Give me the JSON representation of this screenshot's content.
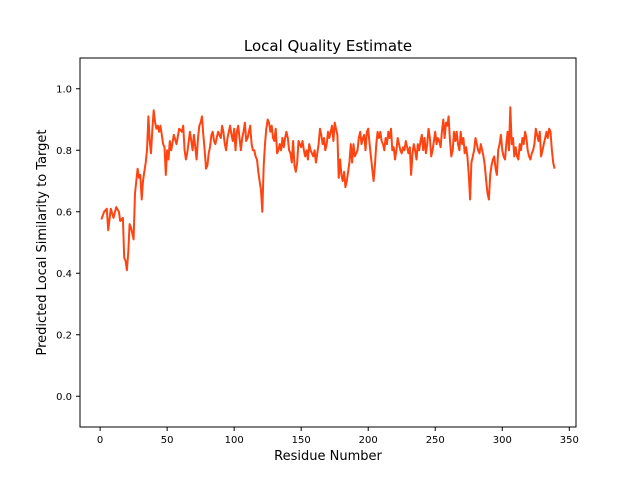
{
  "chart_data": {
    "type": "line",
    "title": "Local Quality Estimate",
    "xlabel": "Residue Number",
    "ylabel": "Predicted Local Similarity to Target",
    "xlim": [
      -15,
      355
    ],
    "ylim": [
      -0.1,
      1.1
    ],
    "xticks": [
      0,
      50,
      100,
      150,
      200,
      250,
      300,
      350
    ],
    "yticks": [
      0.0,
      0.2,
      0.4,
      0.6,
      0.8,
      1.0
    ],
    "ytick_labels": [
      "0.0",
      "0.2",
      "0.4",
      "0.6",
      "0.8",
      "1.0"
    ],
    "grid": false,
    "series": [
      {
        "color": "#ff4411",
        "points": [
          [
            1,
            0.575
          ],
          [
            3,
            0.6
          ],
          [
            5,
            0.61
          ],
          [
            6,
            0.54
          ],
          [
            8,
            0.61
          ],
          [
            10,
            0.58
          ],
          [
            12,
            0.615
          ],
          [
            14,
            0.6
          ],
          [
            15,
            0.57
          ],
          [
            17,
            0.58
          ],
          [
            18,
            0.45
          ],
          [
            19,
            0.44
          ],
          [
            20,
            0.41
          ],
          [
            21,
            0.47
          ],
          [
            22,
            0.56
          ],
          [
            23,
            0.55
          ],
          [
            24,
            0.53
          ],
          [
            25,
            0.51
          ],
          [
            26,
            0.66
          ],
          [
            28,
            0.74
          ],
          [
            29,
            0.71
          ],
          [
            30,
            0.72
          ],
          [
            31,
            0.64
          ],
          [
            32,
            0.7
          ],
          [
            33,
            0.73
          ],
          [
            34,
            0.76
          ],
          [
            35,
            0.8
          ],
          [
            36,
            0.91
          ],
          [
            37,
            0.83
          ],
          [
            38,
            0.79
          ],
          [
            39,
            0.87
          ],
          [
            40,
            0.93
          ],
          [
            41,
            0.89
          ],
          [
            42,
            0.87
          ],
          [
            43,
            0.88
          ],
          [
            44,
            0.86
          ],
          [
            45,
            0.88
          ],
          [
            46,
            0.85
          ],
          [
            47,
            0.82
          ],
          [
            48,
            0.81
          ],
          [
            49,
            0.72
          ],
          [
            50,
            0.8
          ],
          [
            51,
            0.77
          ],
          [
            52,
            0.83
          ],
          [
            53,
            0.8
          ],
          [
            55,
            0.85
          ],
          [
            57,
            0.82
          ],
          [
            59,
            0.87
          ],
          [
            61,
            0.86
          ],
          [
            62,
            0.88
          ],
          [
            63,
            0.8
          ],
          [
            64,
            0.77
          ],
          [
            65,
            0.79
          ],
          [
            67,
            0.86
          ],
          [
            68,
            0.83
          ],
          [
            69,
            0.8
          ],
          [
            70,
            0.85
          ],
          [
            71,
            0.81
          ],
          [
            72,
            0.77
          ],
          [
            73,
            0.84
          ],
          [
            74,
            0.88
          ],
          [
            75,
            0.89
          ],
          [
            76,
            0.91
          ],
          [
            77,
            0.85
          ],
          [
            78,
            0.8
          ],
          [
            79,
            0.74
          ],
          [
            80,
            0.75
          ],
          [
            81,
            0.79
          ],
          [
            82,
            0.81
          ],
          [
            83,
            0.85
          ],
          [
            84,
            0.86
          ],
          [
            85,
            0.83
          ],
          [
            86,
            0.82
          ],
          [
            87,
            0.84
          ],
          [
            88,
            0.86
          ],
          [
            89,
            0.85
          ],
          [
            90,
            0.84
          ],
          [
            91,
            0.88
          ],
          [
            92,
            0.86
          ],
          [
            93,
            0.82
          ],
          [
            94,
            0.8
          ],
          [
            95,
            0.84
          ],
          [
            96,
            0.86
          ],
          [
            97,
            0.88
          ],
          [
            98,
            0.85
          ],
          [
            99,
            0.83
          ],
          [
            100,
            0.87
          ],
          [
            101,
            0.8
          ],
          [
            102,
            0.86
          ],
          [
            103,
            0.88
          ],
          [
            104,
            0.84
          ],
          [
            105,
            0.8
          ],
          [
            106,
            0.84
          ],
          [
            107,
            0.86
          ],
          [
            108,
            0.89
          ],
          [
            109,
            0.83
          ],
          [
            110,
            0.84
          ],
          [
            111,
            0.86
          ],
          [
            112,
            0.88
          ],
          [
            113,
            0.82
          ],
          [
            114,
            0.8
          ],
          [
            115,
            0.8
          ],
          [
            116,
            0.78
          ],
          [
            117,
            0.77
          ],
          [
            118,
            0.73
          ],
          [
            119,
            0.7
          ],
          [
            120,
            0.67
          ],
          [
            121,
            0.6
          ],
          [
            122,
            0.75
          ],
          [
            123,
            0.82
          ],
          [
            124,
            0.87
          ],
          [
            125,
            0.9
          ],
          [
            126,
            0.89
          ],
          [
            127,
            0.86
          ],
          [
            128,
            0.88
          ],
          [
            129,
            0.84
          ],
          [
            130,
            0.83
          ],
          [
            131,
            0.87
          ],
          [
            132,
            0.79
          ],
          [
            133,
            0.8
          ],
          [
            134,
            0.82
          ],
          [
            135,
            0.8
          ],
          [
            136,
            0.84
          ],
          [
            137,
            0.81
          ],
          [
            138,
            0.84
          ],
          [
            139,
            0.86
          ],
          [
            140,
            0.84
          ],
          [
            141,
            0.8
          ],
          [
            142,
            0.79
          ],
          [
            143,
            0.76
          ],
          [
            144,
            0.83
          ],
          [
            145,
            0.75
          ],
          [
            146,
            0.73
          ],
          [
            147,
            0.76
          ],
          [
            148,
            0.83
          ],
          [
            149,
            0.82
          ],
          [
            150,
            0.81
          ],
          [
            151,
            0.83
          ],
          [
            152,
            0.8
          ],
          [
            153,
            0.78
          ],
          [
            154,
            0.8
          ],
          [
            155,
            0.77
          ],
          [
            156,
            0.82
          ],
          [
            157,
            0.8
          ],
          [
            158,
            0.79
          ],
          [
            159,
            0.78
          ],
          [
            160,
            0.8
          ],
          [
            161,
            0.76
          ],
          [
            162,
            0.79
          ],
          [
            163,
            0.82
          ],
          [
            164,
            0.87
          ],
          [
            165,
            0.85
          ],
          [
            166,
            0.82
          ],
          [
            167,
            0.84
          ],
          [
            168,
            0.8
          ],
          [
            169,
            0.82
          ],
          [
            170,
            0.86
          ],
          [
            171,
            0.84
          ],
          [
            172,
            0.86
          ],
          [
            173,
            0.88
          ],
          [
            174,
            0.83
          ],
          [
            175,
            0.89
          ],
          [
            176,
            0.87
          ],
          [
            177,
            0.85
          ],
          [
            178,
            0.71
          ],
          [
            179,
            0.77
          ],
          [
            180,
            0.72
          ],
          [
            181,
            0.7
          ],
          [
            182,
            0.73
          ],
          [
            183,
            0.68
          ],
          [
            184,
            0.7
          ],
          [
            185,
            0.73
          ],
          [
            186,
            0.76
          ],
          [
            187,
            0.82
          ],
          [
            188,
            0.76
          ],
          [
            189,
            0.82
          ],
          [
            190,
            0.78
          ],
          [
            191,
            0.79
          ],
          [
            192,
            0.8
          ],
          [
            193,
            0.84
          ],
          [
            194,
            0.86
          ],
          [
            195,
            0.82
          ],
          [
            196,
            0.84
          ],
          [
            197,
            0.85
          ],
          [
            198,
            0.8
          ],
          [
            199,
            0.86
          ],
          [
            200,
            0.87
          ],
          [
            201,
            0.82
          ],
          [
            202,
            0.78
          ],
          [
            203,
            0.74
          ],
          [
            204,
            0.7
          ],
          [
            205,
            0.75
          ],
          [
            206,
            0.82
          ],
          [
            207,
            0.86
          ],
          [
            208,
            0.84
          ],
          [
            209,
            0.86
          ],
          [
            210,
            0.83
          ],
          [
            211,
            0.82
          ],
          [
            212,
            0.8
          ],
          [
            213,
            0.84
          ],
          [
            214,
            0.82
          ],
          [
            215,
            0.86
          ],
          [
            216,
            0.84
          ],
          [
            217,
            0.87
          ],
          [
            218,
            0.8
          ],
          [
            219,
            0.81
          ],
          [
            220,
            0.77
          ],
          [
            221,
            0.8
          ],
          [
            222,
            0.84
          ],
          [
            223,
            0.82
          ],
          [
            224,
            0.8
          ],
          [
            225,
            0.79
          ],
          [
            226,
            0.81
          ],
          [
            227,
            0.8
          ],
          [
            228,
            0.83
          ],
          [
            229,
            0.81
          ],
          [
            230,
            0.79
          ],
          [
            231,
            0.81
          ],
          [
            232,
            0.72
          ],
          [
            233,
            0.79
          ],
          [
            234,
            0.82
          ],
          [
            235,
            0.8
          ],
          [
            236,
            0.77
          ],
          [
            237,
            0.82
          ],
          [
            238,
            0.8
          ],
          [
            239,
            0.83
          ],
          [
            240,
            0.85
          ],
          [
            241,
            0.8
          ],
          [
            242,
            0.84
          ],
          [
            243,
            0.79
          ],
          [
            244,
            0.82
          ],
          [
            245,
            0.87
          ],
          [
            246,
            0.84
          ],
          [
            247,
            0.78
          ],
          [
            248,
            0.8
          ],
          [
            249,
            0.83
          ],
          [
            250,
            0.86
          ],
          [
            251,
            0.82
          ],
          [
            252,
            0.84
          ],
          [
            253,
            0.83
          ],
          [
            254,
            0.81
          ],
          [
            255,
            0.86
          ],
          [
            256,
            0.9
          ],
          [
            257,
            0.84
          ],
          [
            258,
            0.89
          ],
          [
            259,
            0.88
          ],
          [
            260,
            0.91
          ],
          [
            261,
            0.83
          ],
          [
            262,
            0.78
          ],
          [
            263,
            0.8
          ],
          [
            264,
            0.86
          ],
          [
            265,
            0.83
          ],
          [
            266,
            0.86
          ],
          [
            267,
            0.82
          ],
          [
            268,
            0.8
          ],
          [
            269,
            0.86
          ],
          [
            270,
            0.82
          ],
          [
            271,
            0.84
          ],
          [
            272,
            0.79
          ],
          [
            273,
            0.81
          ],
          [
            274,
            0.78
          ],
          [
            275,
            0.72
          ],
          [
            276,
            0.64
          ],
          [
            277,
            0.76
          ],
          [
            278,
            0.78
          ],
          [
            279,
            0.8
          ],
          [
            280,
            0.84
          ],
          [
            281,
            0.82
          ],
          [
            282,
            0.8
          ],
          [
            283,
            0.79
          ],
          [
            284,
            0.82
          ],
          [
            285,
            0.8
          ],
          [
            286,
            0.78
          ],
          [
            287,
            0.75
          ],
          [
            288,
            0.7
          ],
          [
            289,
            0.66
          ],
          [
            290,
            0.64
          ],
          [
            291,
            0.72
          ],
          [
            292,
            0.75
          ],
          [
            293,
            0.77
          ],
          [
            294,
            0.78
          ],
          [
            295,
            0.74
          ],
          [
            296,
            0.72
          ],
          [
            297,
            0.8
          ],
          [
            298,
            0.82
          ],
          [
            299,
            0.85
          ],
          [
            300,
            0.8
          ],
          [
            301,
            0.78
          ],
          [
            302,
            0.77
          ],
          [
            303,
            0.82
          ],
          [
            304,
            0.86
          ],
          [
            305,
            0.8
          ],
          [
            306,
            0.94
          ],
          [
            307,
            0.82
          ],
          [
            308,
            0.84
          ],
          [
            309,
            0.78
          ],
          [
            310,
            0.81
          ],
          [
            311,
            0.78
          ],
          [
            312,
            0.77
          ],
          [
            313,
            0.82
          ],
          [
            314,
            0.8
          ],
          [
            315,
            0.84
          ],
          [
            316,
            0.82
          ],
          [
            317,
            0.86
          ],
          [
            318,
            0.84
          ],
          [
            319,
            0.8
          ],
          [
            320,
            0.78
          ],
          [
            321,
            0.77
          ],
          [
            322,
            0.79
          ],
          [
            323,
            0.8
          ],
          [
            324,
            0.82
          ],
          [
            325,
            0.87
          ],
          [
            326,
            0.85
          ],
          [
            327,
            0.83
          ],
          [
            328,
            0.86
          ],
          [
            329,
            0.78
          ],
          [
            330,
            0.8
          ],
          [
            331,
            0.82
          ],
          [
            332,
            0.84
          ],
          [
            333,
            0.86
          ],
          [
            334,
            0.84
          ],
          [
            335,
            0.87
          ],
          [
            336,
            0.86
          ],
          [
            337,
            0.8
          ],
          [
            338,
            0.76
          ],
          [
            339,
            0.74
          ]
        ]
      }
    ]
  }
}
